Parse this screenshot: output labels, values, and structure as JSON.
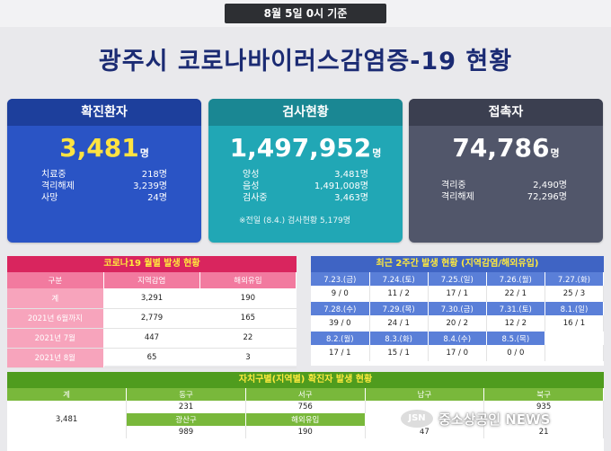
{
  "date_label": "8월 5일 0시 기준",
  "title": "광주시 코로나바이러스감염증-19 현황",
  "cards": {
    "confirmed": {
      "header": "확진환자",
      "number": "3,481",
      "unit": "명",
      "rows": [
        {
          "label": "치료중",
          "value": "218명"
        },
        {
          "label": "격리해제",
          "value": "3,239명"
        },
        {
          "label": "사망",
          "value": "24명"
        }
      ]
    },
    "tests": {
      "header": "검사현황",
      "number": "1,497,952",
      "unit": "명",
      "rows": [
        {
          "label": "양성",
          "value": "3,481명"
        },
        {
          "label": "음성",
          "value": "1,491,008명"
        },
        {
          "label": "검사중",
          "value": "3,463명"
        }
      ],
      "note": "※전일 (8.4.) 검사현황 5,179명"
    },
    "contacts": {
      "header": "접촉자",
      "number": "74,786",
      "unit": "명",
      "rows": [
        {
          "label": "격리중",
          "value": "2,490명"
        },
        {
          "label": "격리해제",
          "value": "72,296명"
        }
      ]
    }
  },
  "monthly": {
    "caption": "코로나19 월별 발생 현황",
    "headers": [
      "구분",
      "지역감염",
      "해외유입"
    ],
    "rows": [
      {
        "label": "계",
        "local": "3,291",
        "overseas": "190"
      },
      {
        "label": "2021년 6월까지",
        "local": "2,779",
        "overseas": "165"
      },
      {
        "label": "2021년 7월",
        "local": "447",
        "overseas": "22"
      },
      {
        "label": "2021년 8월",
        "local": "65",
        "overseas": "3"
      }
    ]
  },
  "recent": {
    "caption": "최근 2주간 발생 현황 (지역감염/해외유입)",
    "r1_dates": [
      "7.23.(금)",
      "7.24.(토)",
      "7.25.(일)",
      "7.26.(월)",
      "7.27.(화)"
    ],
    "r1_values": [
      "9 / 0",
      "11 / 2",
      "17 / 1",
      "22 / 1",
      "25 / 3"
    ],
    "r2_dates": [
      "7.28.(수)",
      "7.29.(목)",
      "7.30.(금)",
      "7.31.(토)",
      "8.1.(일)"
    ],
    "r2_values": [
      "39 / 0",
      "24 / 1",
      "20 / 2",
      "12 / 2",
      "16 / 1"
    ],
    "r3_dates": [
      "8.2.(월)",
      "8.3.(화)",
      "8.4.(수)",
      "8.5.(목)"
    ],
    "r3_values": [
      "17 / 1",
      "15 / 1",
      "17 / 0",
      "0 / 0"
    ]
  },
  "district": {
    "caption": "자치구별(지역별) 확진자 발생 현황",
    "headers": [
      "계",
      "동구",
      "서구",
      "남구",
      "북구"
    ],
    "total": "3,481",
    "row1": [
      "231",
      "756",
      "",
      "935"
    ],
    "subheaders": [
      "광산구",
      "해외유입"
    ],
    "row2": [
      "989",
      "190",
      "47",
      "21"
    ]
  },
  "watermark": {
    "logo": "JSN",
    "text": "중소상공인 NEWS"
  },
  "colors": {
    "confirmed": "#2a54c5",
    "tests": "#21a7b5",
    "contacts": "#51566a",
    "monthly": "#d9255e",
    "recent": "#3f64c4",
    "district": "#4f9c1e",
    "highlight": "#ffe341"
  }
}
